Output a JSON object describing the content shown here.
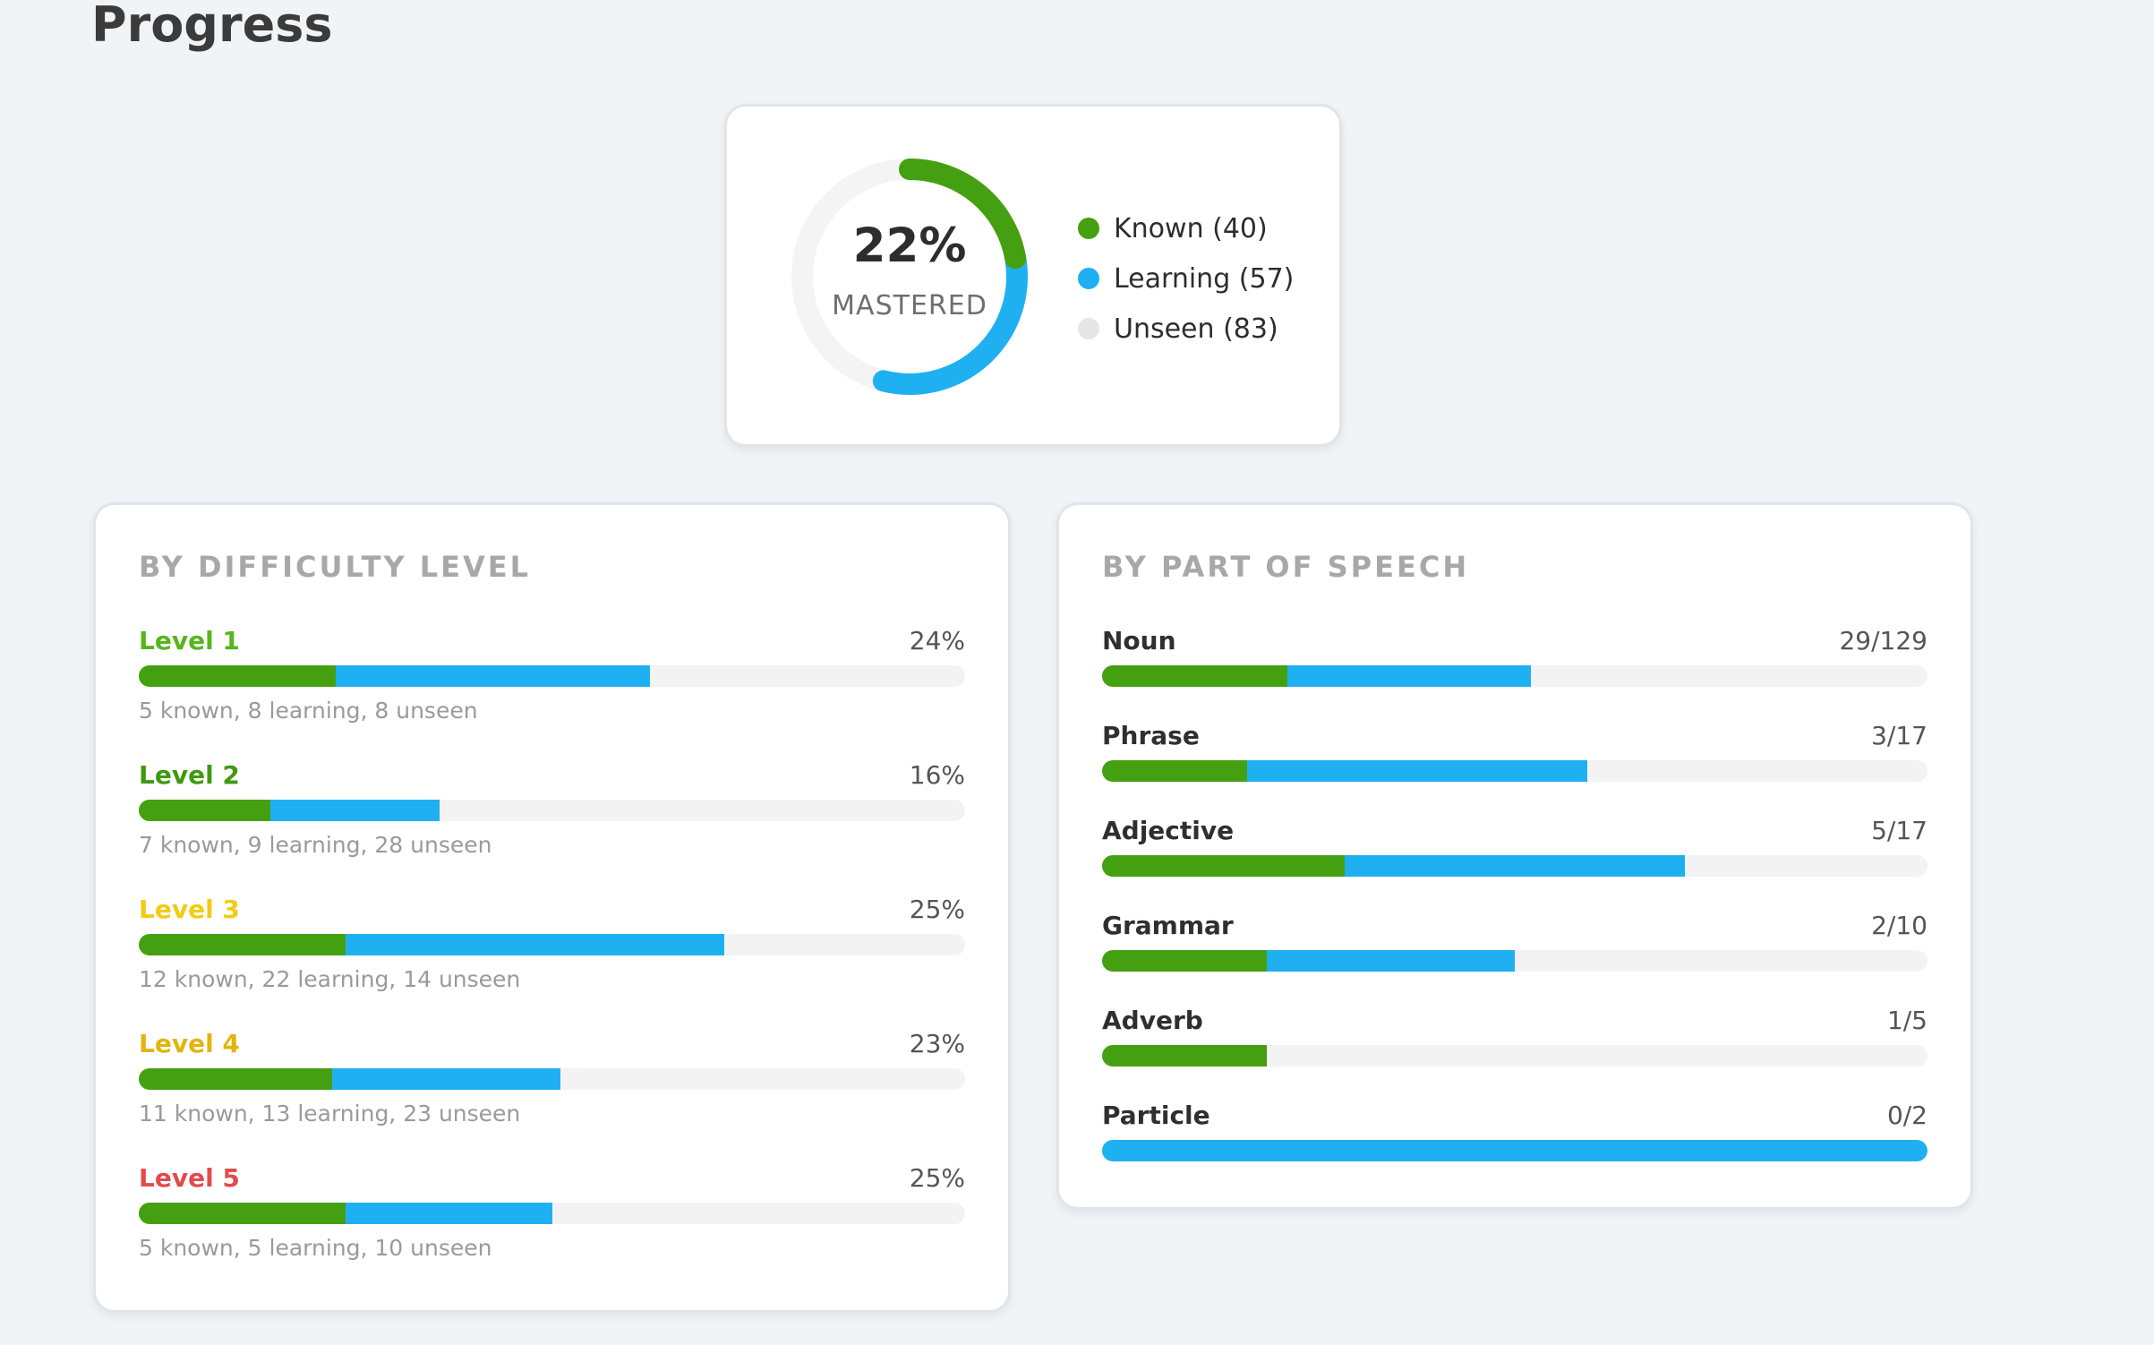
{
  "page": {
    "title": "Progress"
  },
  "colors": {
    "known": "#45a011",
    "learning": "#1fb0f2",
    "unseen": "#e6e6e6",
    "track": "#f3f3f3"
  },
  "summary": {
    "percent_label": "22%",
    "sub_label": "MASTERED",
    "known": 40,
    "learning": 57,
    "unseen": 83,
    "legend": [
      {
        "label": "Known (40)",
        "color": "#45a011",
        "icon": "green-dot-icon"
      },
      {
        "label": "Learning (57)",
        "color": "#1fb0f2",
        "icon": "blue-dot-icon"
      },
      {
        "label": "Unseen (83)",
        "color": "#e6e6e6",
        "icon": "gray-dot-icon"
      }
    ]
  },
  "difficulty": {
    "heading": "BY DIFFICULTY LEVEL",
    "levels": [
      {
        "name": "Level 1",
        "color": "#57b51c",
        "percent": "24%",
        "known": 5,
        "learning": 8,
        "unseen": 8,
        "detail": "5 known, 8 learning, 8 unseen"
      },
      {
        "name": "Level 2",
        "color": "#3f9a10",
        "percent": "16%",
        "known": 7,
        "learning": 9,
        "unseen": 28,
        "detail": "7 known, 9 learning, 28 unseen"
      },
      {
        "name": "Level 3",
        "color": "#f2cb12",
        "percent": "25%",
        "known": 12,
        "learning": 22,
        "unseen": 14,
        "detail": "12 known, 22 learning, 14 unseen"
      },
      {
        "name": "Level 4",
        "color": "#e1b50f",
        "percent": "23%",
        "known": 11,
        "learning": 13,
        "unseen": 23,
        "detail": "11 known, 13 learning, 23 unseen"
      },
      {
        "name": "Level 5",
        "color": "#e24b4b",
        "percent": "25%",
        "known": 5,
        "learning": 5,
        "unseen": 10,
        "detail": "5 known, 5 learning, 10 unseen"
      }
    ]
  },
  "part_of_speech": {
    "heading": "BY PART OF SPEECH",
    "items": [
      {
        "name": "Noun",
        "value": "29/129",
        "known_fraction": 0.225,
        "learning_fraction": 0.295
      },
      {
        "name": "Phrase",
        "value": "3/17",
        "known_fraction": 0.176,
        "learning_fraction": 0.412
      },
      {
        "name": "Adjective",
        "value": "5/17",
        "known_fraction": 0.294,
        "learning_fraction": 0.412
      },
      {
        "name": "Grammar",
        "value": "2/10",
        "known_fraction": 0.2,
        "learning_fraction": 0.3
      },
      {
        "name": "Adverb",
        "value": "1/5",
        "known_fraction": 0.2,
        "learning_fraction": 0.0
      },
      {
        "name": "Particle",
        "value": "0/2",
        "known_fraction": 0.0,
        "learning_fraction": 1.0
      }
    ]
  }
}
